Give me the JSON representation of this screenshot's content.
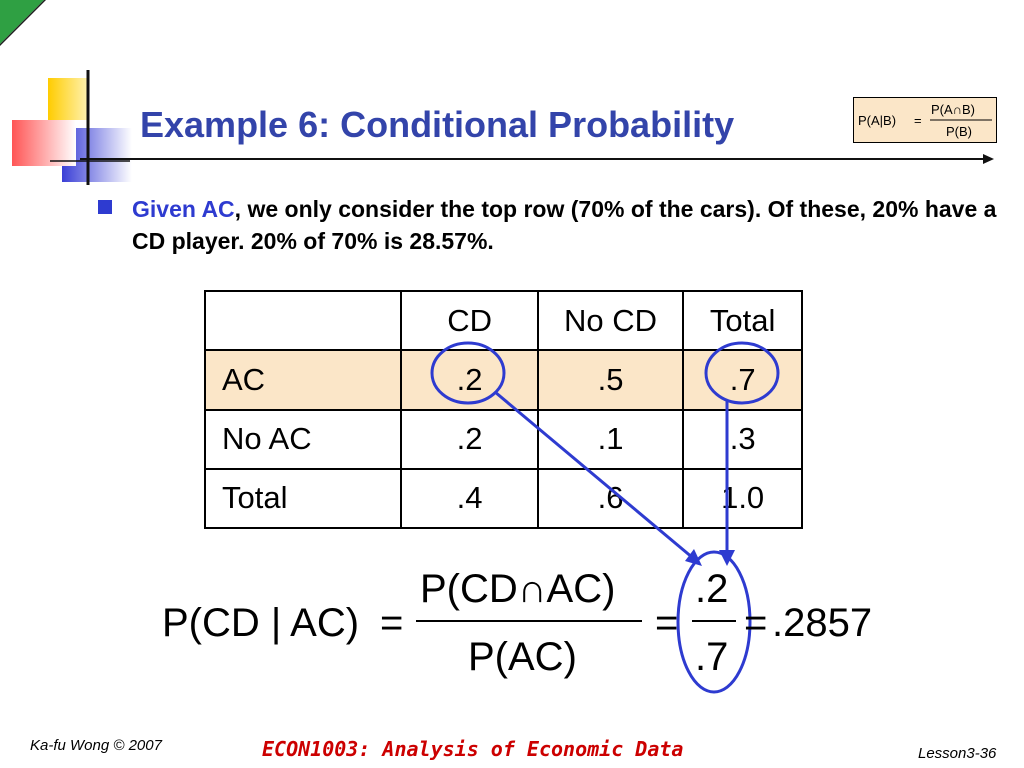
{
  "title": "Example 6: Conditional Probability",
  "formula_box": {
    "lhs": "P(A|B)",
    "numerator": "P(A∩B)",
    "denominator": "P(B)"
  },
  "bullet": {
    "highlight": "Given AC",
    "rest": ", we only consider the top row (70% of the cars). Of these, 20% have a CD player.  20% of 70% is 28.57%."
  },
  "table": {
    "headers": [
      "",
      "CD",
      "No CD",
      "Total"
    ],
    "rows": [
      {
        "label": "AC",
        "cells": [
          ".2",
          ".5",
          ".7"
        ]
      },
      {
        "label": "No AC",
        "cells": [
          ".2",
          ".1",
          ".3"
        ]
      },
      {
        "label": "Total",
        "cells": [
          ".4",
          ".6",
          "1.0"
        ]
      }
    ]
  },
  "equation": {
    "lhs": "P(CD | AC)",
    "numerator": "P(CD∩AC)",
    "denominator": "P(AC)",
    "frac_num": ".2",
    "frac_den": ".7",
    "result": ".2857"
  },
  "colors": {
    "title": "#3344aa",
    "accent_blue": "#2e3bd0",
    "highlight_row": "#fbe6c8",
    "footer_red": "#cc0000"
  },
  "footer": {
    "left": "Ka-fu Wong © 2007",
    "middle": "ECON1003: Analysis of Economic Data",
    "right": "Lesson3-36"
  }
}
